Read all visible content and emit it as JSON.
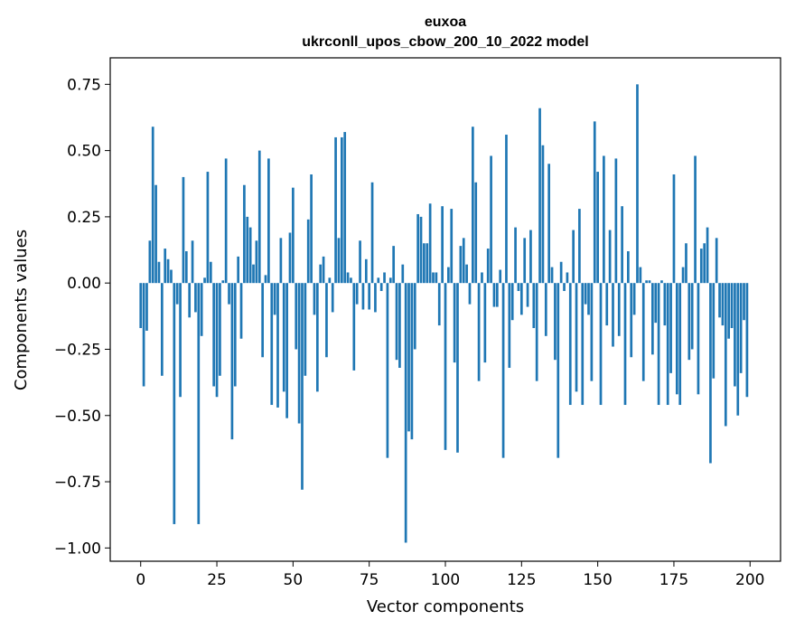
{
  "chart_data": {
    "type": "bar",
    "title_line1": "euxoa",
    "title_line2": "ukrconll_upos_cbow_200_10_2022 model",
    "xlabel": "Vector components",
    "ylabel": "Components values",
    "xlim": [
      -10,
      210
    ],
    "ylim": [
      -1.05,
      0.85
    ],
    "x_ticks": [
      0,
      25,
      50,
      75,
      100,
      125,
      150,
      175,
      200
    ],
    "x_tick_labels": [
      "0",
      "25",
      "50",
      "75",
      "100",
      "125",
      "150",
      "175",
      "200"
    ],
    "y_ticks": [
      0.75,
      0.5,
      0.25,
      0.0,
      -0.25,
      -0.5,
      -0.75,
      -1.0
    ],
    "y_tick_labels": [
      "0.75",
      "0.50",
      "0.25",
      "0.00",
      "−0.25",
      "−0.50",
      "−0.75",
      "−1.00"
    ],
    "bar_color": "#1f77b4",
    "grid": false,
    "values": [
      -0.17,
      -0.39,
      -0.18,
      0.16,
      0.59,
      0.37,
      0.08,
      -0.35,
      0.13,
      0.09,
      0.05,
      -0.91,
      -0.08,
      -0.43,
      0.4,
      0.12,
      -0.13,
      0.16,
      -0.11,
      -0.91,
      -0.2,
      0.02,
      0.42,
      0.08,
      -0.39,
      -0.43,
      -0.35,
      0.01,
      0.47,
      -0.08,
      -0.59,
      -0.39,
      0.1,
      -0.21,
      0.37,
      0.25,
      0.21,
      0.07,
      0.16,
      0.5,
      -0.28,
      0.03,
      0.47,
      -0.46,
      -0.12,
      -0.47,
      0.17,
      -0.41,
      -0.51,
      0.19,
      0.36,
      -0.25,
      -0.53,
      -0.78,
      -0.35,
      0.24,
      0.41,
      -0.12,
      -0.41,
      0.07,
      0.1,
      -0.28,
      0.02,
      -0.11,
      0.55,
      0.17,
      0.55,
      0.57,
      0.04,
      0.02,
      -0.33,
      -0.08,
      0.16,
      -0.1,
      0.09,
      -0.1,
      0.38,
      -0.11,
      0.02,
      -0.03,
      0.04,
      -0.66,
      0.02,
      0.14,
      -0.29,
      -0.32,
      0.07,
      -0.98,
      -0.56,
      -0.59,
      -0.25,
      0.26,
      0.25,
      0.15,
      0.15,
      0.3,
      0.04,
      0.04,
      -0.16,
      0.29,
      -0.63,
      0.06,
      0.28,
      -0.3,
      -0.64,
      0.14,
      0.17,
      0.07,
      -0.08,
      0.59,
      0.38,
      -0.37,
      0.04,
      -0.3,
      0.13,
      0.48,
      -0.09,
      -0.09,
      0.05,
      -0.66,
      0.56,
      -0.32,
      -0.14,
      0.21,
      -0.03,
      -0.12,
      0.17,
      -0.09,
      0.2,
      -0.17,
      -0.37,
      0.66,
      0.52,
      -0.2,
      0.45,
      0.06,
      -0.29,
      -0.66,
      0.08,
      -0.03,
      0.04,
      -0.46,
      0.2,
      -0.41,
      0.28,
      -0.46,
      -0.08,
      -0.12,
      -0.37,
      0.61,
      0.42,
      -0.46,
      0.48,
      -0.16,
      0.2,
      -0.24,
      0.47,
      -0.2,
      0.29,
      -0.46,
      0.12,
      -0.28,
      -0.12,
      0.75,
      0.06,
      -0.37,
      0.01,
      0.01,
      -0.27,
      -0.15,
      -0.46,
      0.01,
      -0.16,
      -0.46,
      -0.34,
      0.41,
      -0.42,
      -0.46,
      0.06,
      0.15,
      -0.29,
      -0.25,
      0.48,
      -0.42,
      0.13,
      0.15,
      0.21,
      -0.68,
      -0.36,
      0.17,
      -0.13,
      -0.16,
      -0.54,
      -0.21,
      -0.17,
      -0.39,
      -0.5,
      -0.34,
      -0.14,
      -0.43
    ]
  }
}
